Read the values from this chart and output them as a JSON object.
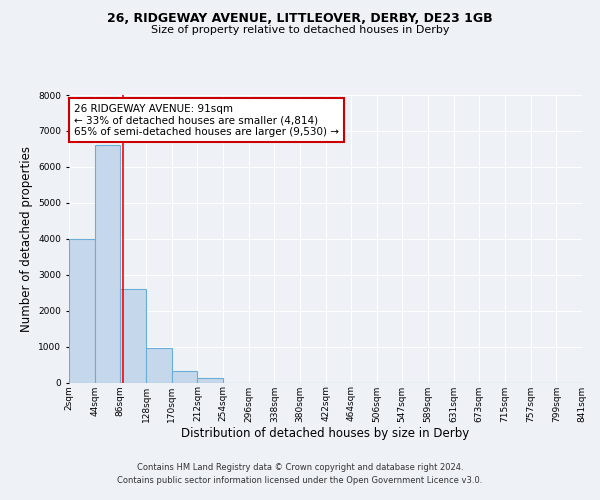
{
  "title_line1": "26, RIDGEWAY AVENUE, LITTLEOVER, DERBY, DE23 1GB",
  "title_line2": "Size of property relative to detached houses in Derby",
  "xlabel": "Distribution of detached houses by size in Derby",
  "ylabel": "Number of detached properties",
  "bar_edges": [
    2,
    44,
    86,
    128,
    170,
    212,
    254,
    296,
    338,
    380,
    422,
    464,
    506,
    547,
    589,
    631,
    673,
    715,
    757,
    799,
    841
  ],
  "bar_heights": [
    4000,
    6600,
    2600,
    950,
    320,
    120,
    0,
    0,
    0,
    0,
    0,
    0,
    0,
    0,
    0,
    0,
    0,
    0,
    0,
    0
  ],
  "bar_color": "#c5d8eb",
  "bar_edgecolor": "#6aaed6",
  "ylim": [
    0,
    8000
  ],
  "yticks": [
    0,
    1000,
    2000,
    3000,
    4000,
    5000,
    6000,
    7000,
    8000
  ],
  "red_line_x": 91,
  "annotation_title": "26 RIDGEWAY AVENUE: 91sqm",
  "annotation_line1": "← 33% of detached houses are smaller (4,814)",
  "annotation_line2": "65% of semi-detached houses are larger (9,530) →",
  "annotation_box_color": "#ffffff",
  "annotation_box_edgecolor": "#cc0000",
  "footnote1": "Contains HM Land Registry data © Crown copyright and database right 2024.",
  "footnote2": "Contains public sector information licensed under the Open Government Licence v3.0.",
  "bg_color": "#eef2f7",
  "plot_bg_color": "#eef2f7",
  "xtick_labels": [
    "2sqm",
    "44sqm",
    "86sqm",
    "128sqm",
    "170sqm",
    "212sqm",
    "254sqm",
    "296sqm",
    "338sqm",
    "380sqm",
    "422sqm",
    "464sqm",
    "506sqm",
    "547sqm",
    "589sqm",
    "631sqm",
    "673sqm",
    "715sqm",
    "757sqm",
    "799sqm",
    "841sqm"
  ],
  "grid_color": "#ffffff",
  "tick_label_fontsize": 6.5,
  "axis_label_fontsize": 8.5,
  "title1_fontsize": 9.0,
  "title2_fontsize": 8.0,
  "annot_fontsize": 7.5,
  "footnote_fontsize": 6.0
}
